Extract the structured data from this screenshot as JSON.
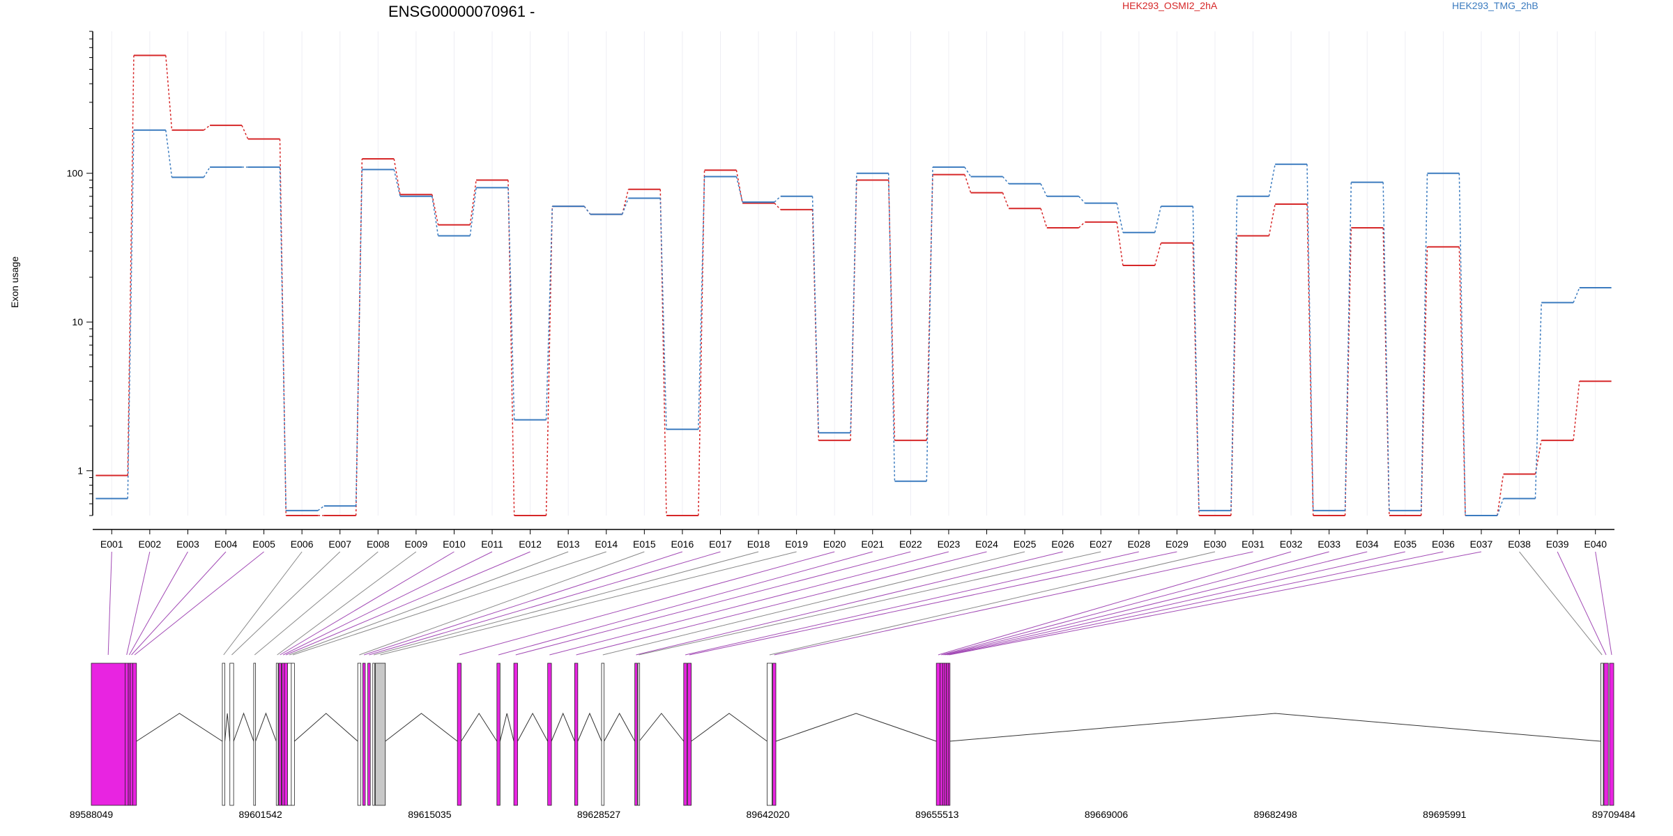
{
  "chart_data": {
    "type": "line",
    "title": "ENSG00000070961 -",
    "ylabel": "Exon usage",
    "xlabel": "",
    "y_scale": "log",
    "ylim": [
      0.5,
      900
    ],
    "y_ticks": [
      1,
      10,
      100
    ],
    "grid": "vertical",
    "legend": "top-right",
    "categories": [
      "E001",
      "E002",
      "E003",
      "E004",
      "E005",
      "E006",
      "E007",
      "E008",
      "E009",
      "E010",
      "E011",
      "E012",
      "E013",
      "E014",
      "E015",
      "E016",
      "E017",
      "E018",
      "E019",
      "E020",
      "E021",
      "E022",
      "E023",
      "E024",
      "E025",
      "E026",
      "E027",
      "E028",
      "E029",
      "E030",
      "E031",
      "E032",
      "E033",
      "E034",
      "E035",
      "E036",
      "E037",
      "E038",
      "E039",
      "E040"
    ],
    "series": [
      {
        "name": "HEK293_OSMI2_2hA",
        "color": "#d62728",
        "values": [
          0.93,
          620,
          195,
          210,
          170,
          0.5,
          0.5,
          125,
          72,
          45,
          90,
          0.5,
          60,
          53,
          78,
          0.5,
          105,
          63,
          57,
          1.6,
          90,
          1.6,
          98,
          74,
          58,
          43,
          47,
          24,
          34,
          0.5,
          38,
          62,
          0.5,
          43,
          0.5,
          32,
          0.5,
          0.95,
          1.6,
          4.0
        ]
      },
      {
        "name": "HEK293_TMG_2hB",
        "color": "#3b7bbf",
        "values": [
          0.65,
          195,
          94,
          110,
          110,
          0.54,
          0.58,
          106,
          70,
          38,
          80,
          2.2,
          60,
          53,
          68,
          1.9,
          95,
          64,
          70,
          1.8,
          100,
          0.85,
          110,
          95,
          85,
          70,
          63,
          40,
          60,
          0.54,
          70,
          115,
          0.54,
          87,
          0.54,
          100,
          0.5,
          0.65,
          13.5,
          17
        ]
      }
    ],
    "genome": {
      "axis_ticks": [
        89588049,
        89601542,
        89615035,
        89628527,
        89642020,
        89655513,
        89669006,
        89682498,
        89695991,
        89709484
      ],
      "start": 89588049,
      "end": 89709484,
      "exons": [
        {
          "id": "E001",
          "start": 89588049,
          "end": 89590740,
          "significant": true
        },
        {
          "id": "E002",
          "start": 89590740,
          "end": 89591000,
          "significant": true
        },
        {
          "id": "E003",
          "start": 89591000,
          "end": 89591150,
          "significant": true
        },
        {
          "id": "E004",
          "start": 89591150,
          "end": 89591350,
          "significant": true
        },
        {
          "id": "E005",
          "start": 89591350,
          "end": 89591650,
          "significant": true
        },
        {
          "id": "E006",
          "start": 89598500,
          "end": 89598700,
          "significant": false
        },
        {
          "id": "E007",
          "start": 89599100,
          "end": 89599400,
          "significant": false
        },
        {
          "id": "E008",
          "start": 89601000,
          "end": 89601150,
          "significant": false
        },
        {
          "id": "E009",
          "start": 89602800,
          "end": 89602950,
          "significant": false
        },
        {
          "id": "E010",
          "start": 89603000,
          "end": 89603200,
          "significant": true
        },
        {
          "id": "E011",
          "start": 89603250,
          "end": 89603450,
          "significant": true
        },
        {
          "id": "E012",
          "start": 89603450,
          "end": 89603700,
          "significant": true
        },
        {
          "id": "E013",
          "start": 89603700,
          "end": 89604000,
          "significant": false
        },
        {
          "id": "E014",
          "start": 89604000,
          "end": 89604250,
          "significant": false
        },
        {
          "id": "E015",
          "start": 89609300,
          "end": 89609550,
          "significant": false
        },
        {
          "id": "E016",
          "start": 89609700,
          "end": 89609900,
          "significant": true
        },
        {
          "id": "E017",
          "start": 89610100,
          "end": 89610300,
          "significant": true
        },
        {
          "id": "E018",
          "start": 89610500,
          "end": 89610650,
          "significant": false
        },
        {
          "id": "E019",
          "start": 89610700,
          "end": 89611500,
          "significant": false
        },
        {
          "id": "E020",
          "start": 89617250,
          "end": 89617550,
          "significant": true
        },
        {
          "id": "E021",
          "start": 89620400,
          "end": 89620650,
          "significant": true
        },
        {
          "id": "E022",
          "start": 89621750,
          "end": 89622050,
          "significant": true
        },
        {
          "id": "E023",
          "start": 89624450,
          "end": 89624750,
          "significant": true
        },
        {
          "id": "E024",
          "start": 89626600,
          "end": 89626850,
          "significant": true
        },
        {
          "id": "E025",
          "start": 89628750,
          "end": 89628950,
          "significant": false
        },
        {
          "id": "E026",
          "start": 89631400,
          "end": 89631600,
          "significant": true
        },
        {
          "id": "E027",
          "start": 89631650,
          "end": 89631750,
          "significant": false
        },
        {
          "id": "E028",
          "start": 89635300,
          "end": 89635550,
          "significant": true
        },
        {
          "id": "E029",
          "start": 89635600,
          "end": 89635900,
          "significant": true
        },
        {
          "id": "E030",
          "start": 89641950,
          "end": 89642350,
          "significant": false
        },
        {
          "id": "E031",
          "start": 89642400,
          "end": 89642650,
          "significant": true
        },
        {
          "id": "E032",
          "start": 89655450,
          "end": 89655750,
          "significant": true
        },
        {
          "id": "E033",
          "start": 89655750,
          "end": 89655950,
          "significant": true
        },
        {
          "id": "E034",
          "start": 89655950,
          "end": 89656100,
          "significant": true
        },
        {
          "id": "E035",
          "start": 89656100,
          "end": 89656250,
          "significant": true
        },
        {
          "id": "E036",
          "start": 89656250,
          "end": 89656400,
          "significant": true
        },
        {
          "id": "E037",
          "start": 89656400,
          "end": 89656500,
          "significant": true
        },
        {
          "id": "E038",
          "start": 89708450,
          "end": 89708650,
          "significant": false
        },
        {
          "id": "E039",
          "start": 89708700,
          "end": 89709050,
          "significant": true
        },
        {
          "id": "E040",
          "start": 89709150,
          "end": 89709484,
          "significant": true
        }
      ]
    }
  }
}
